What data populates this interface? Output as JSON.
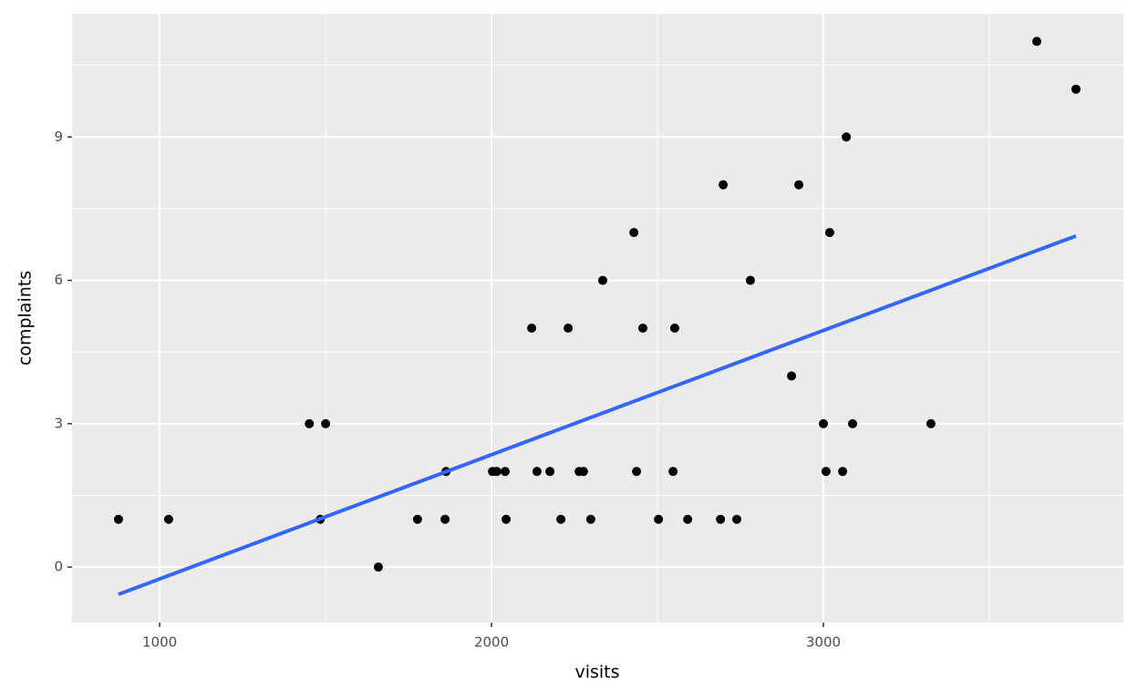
{
  "chart_data": {
    "type": "scatter",
    "xlabel": "visits",
    "ylabel": "complaints",
    "x": [
      876,
      1027,
      1451,
      1500,
      1484,
      1659,
      1777,
      1863,
      1860,
      2003,
      2016,
      2041,
      2044,
      2121,
      2137,
      2176,
      2209,
      2231,
      2264,
      2277,
      2299,
      2335,
      2429,
      2437,
      2456,
      2503,
      2547,
      2552,
      2591,
      2690,
      2698,
      2739,
      2780,
      2904,
      2926,
      3000,
      3008,
      3019,
      3058,
      3069,
      3088,
      3324,
      3643,
      3761
    ],
    "y": [
      1,
      1,
      3,
      3,
      1,
      0,
      1,
      2,
      1,
      2,
      2,
      2,
      1,
      5,
      2,
      2,
      1,
      5,
      2,
      2,
      1,
      6,
      7,
      2,
      5,
      1,
      2,
      5,
      1,
      1,
      8,
      1,
      6,
      4,
      8,
      3,
      2,
      7,
      2,
      9,
      3,
      3,
      11,
      10
    ],
    "color": "#000000",
    "fit": {
      "x": [
        876,
        3761
      ],
      "y": [
        -0.57,
        6.93
      ],
      "color": "#3366ff"
    },
    "xlim": [
      736,
      3904
    ],
    "ylim": [
      -1.16,
      11.58
    ],
    "xticks": [
      1000,
      2000,
      3000
    ],
    "yticks": [
      0,
      3,
      6,
      9
    ],
    "xminor": [
      1500,
      2500,
      3500
    ],
    "yminor": [
      1.5,
      4.5,
      7.5,
      10.5
    ],
    "grid": true
  }
}
